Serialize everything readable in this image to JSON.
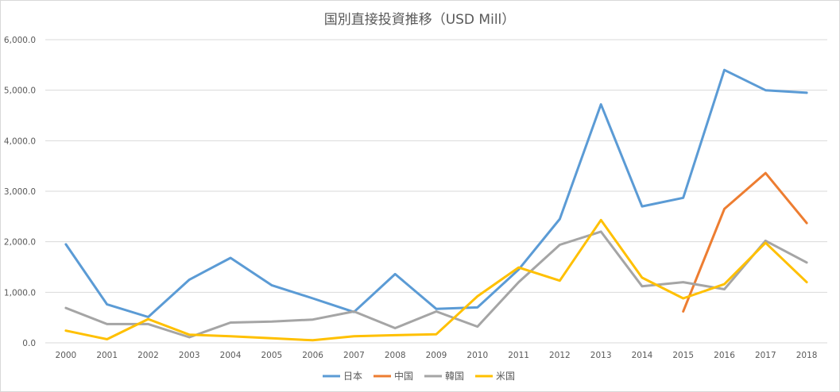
{
  "chart_data": {
    "type": "line",
    "title": "国別直接投資推移（USD Mill）",
    "xlabel": "",
    "ylabel": "",
    "x": [
      "2000",
      "2001",
      "2002",
      "2003",
      "2004",
      "2005",
      "2006",
      "2007",
      "2008",
      "2009",
      "2010",
      "2011",
      "2012",
      "2013",
      "2014",
      "2015",
      "2016",
      "2017",
      "2018"
    ],
    "ylim": [
      0,
      6000
    ],
    "yticks": [
      0,
      1000,
      2000,
      3000,
      4000,
      5000,
      6000
    ],
    "ytick_labels": [
      "0.0",
      "1,000.0",
      "2,000.0",
      "3,000.0",
      "4,000.0",
      "5,000.0",
      "6,000.0"
    ],
    "grid": true,
    "legend_position": "bottom",
    "series": [
      {
        "name": "日本",
        "color": "#5b9bd5",
        "values": [
          1950,
          760,
          510,
          1250,
          1680,
          1140,
          880,
          610,
          1360,
          670,
          700,
          1450,
          2450,
          4720,
          2700,
          2870,
          5400,
          5000,
          4950
        ]
      },
      {
        "name": "中国",
        "color": "#ed7d31",
        "values": [
          null,
          null,
          null,
          null,
          null,
          null,
          null,
          null,
          null,
          null,
          null,
          null,
          null,
          null,
          null,
          620,
          2650,
          3360,
          2370
        ]
      },
      {
        "name": "韓国",
        "color": "#a5a5a5",
        "values": [
          690,
          370,
          370,
          110,
          400,
          420,
          460,
          620,
          290,
          620,
          320,
          1200,
          1940,
          2200,
          1120,
          1200,
          1060,
          2020,
          1590
        ]
      },
      {
        "name": "米国",
        "color": "#ffc000",
        "values": [
          240,
          70,
          470,
          160,
          130,
          90,
          50,
          130,
          150,
          170,
          920,
          1490,
          1230,
          2430,
          1290,
          880,
          1160,
          1980,
          1200
        ]
      }
    ]
  }
}
